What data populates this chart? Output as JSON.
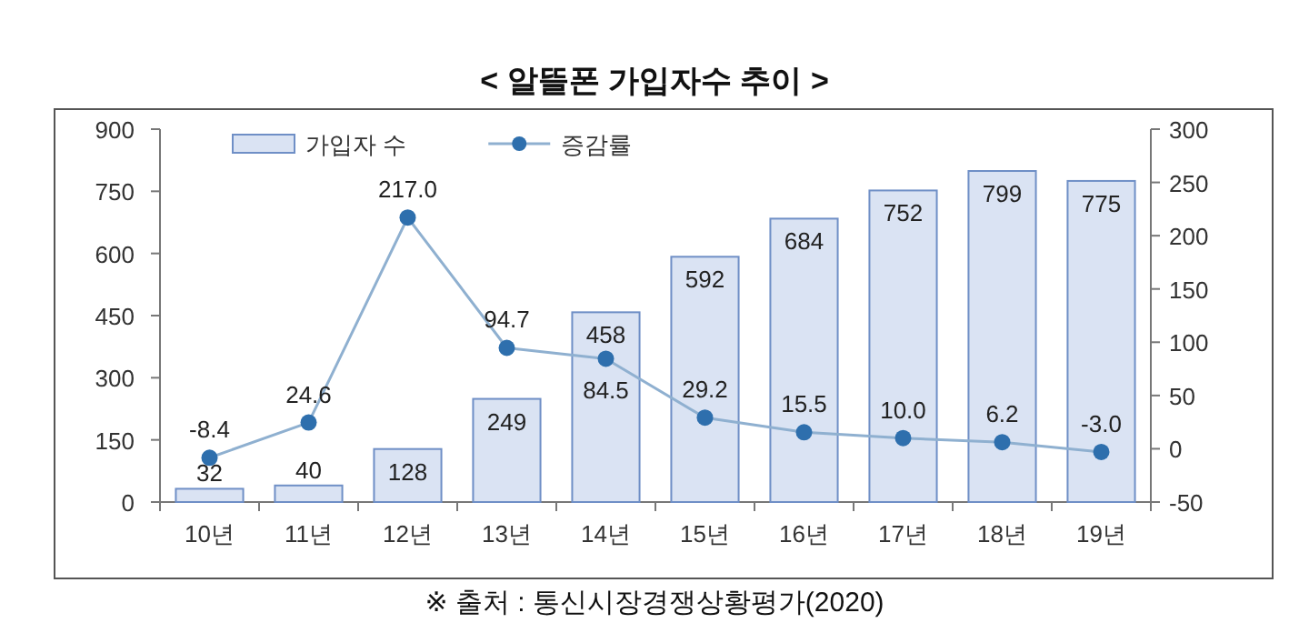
{
  "chart_data": {
    "type": "bar",
    "title": "< 알뜰폰 가입자수 추이 >",
    "categories": [
      "10년",
      "11년",
      "12년",
      "13년",
      "14년",
      "15년",
      "16년",
      "17년",
      "18년",
      "19년"
    ],
    "series": [
      {
        "name": "가입자 수",
        "color": "#dae3f3",
        "values": [
          32,
          40,
          128,
          249,
          458,
          592,
          684,
          752,
          799,
          775
        ],
        "value_labels": [
          "32",
          "40",
          "128",
          "249",
          "458",
          "592",
          "684",
          "752",
          "799",
          "775"
        ]
      },
      {
        "name": "증감률",
        "type": "line",
        "axis": "y2",
        "color": "#2e6fad",
        "marker": "circle",
        "values": [
          -8.4,
          24.6,
          217.0,
          94.7,
          84.5,
          29.2,
          15.5,
          10.0,
          6.2,
          -3.0
        ],
        "value_labels": [
          "-8.4",
          "24.6",
          "217.0",
          "94.7",
          "84.5",
          "29.2",
          "15.5",
          "10.0",
          "6.2",
          "-3.0"
        ]
      }
    ],
    "ylim": [
      0,
      900
    ],
    "yticks": [
      0,
      150,
      300,
      450,
      600,
      750,
      900
    ],
    "y2lim": [
      -50,
      300
    ],
    "y2ticks": [
      -50,
      0,
      50,
      100,
      150,
      200,
      250,
      300
    ],
    "legend": "top left",
    "grid": false,
    "annotations": [
      "※ 출처 : 통신시장경쟁상황평가(2020)"
    ]
  }
}
